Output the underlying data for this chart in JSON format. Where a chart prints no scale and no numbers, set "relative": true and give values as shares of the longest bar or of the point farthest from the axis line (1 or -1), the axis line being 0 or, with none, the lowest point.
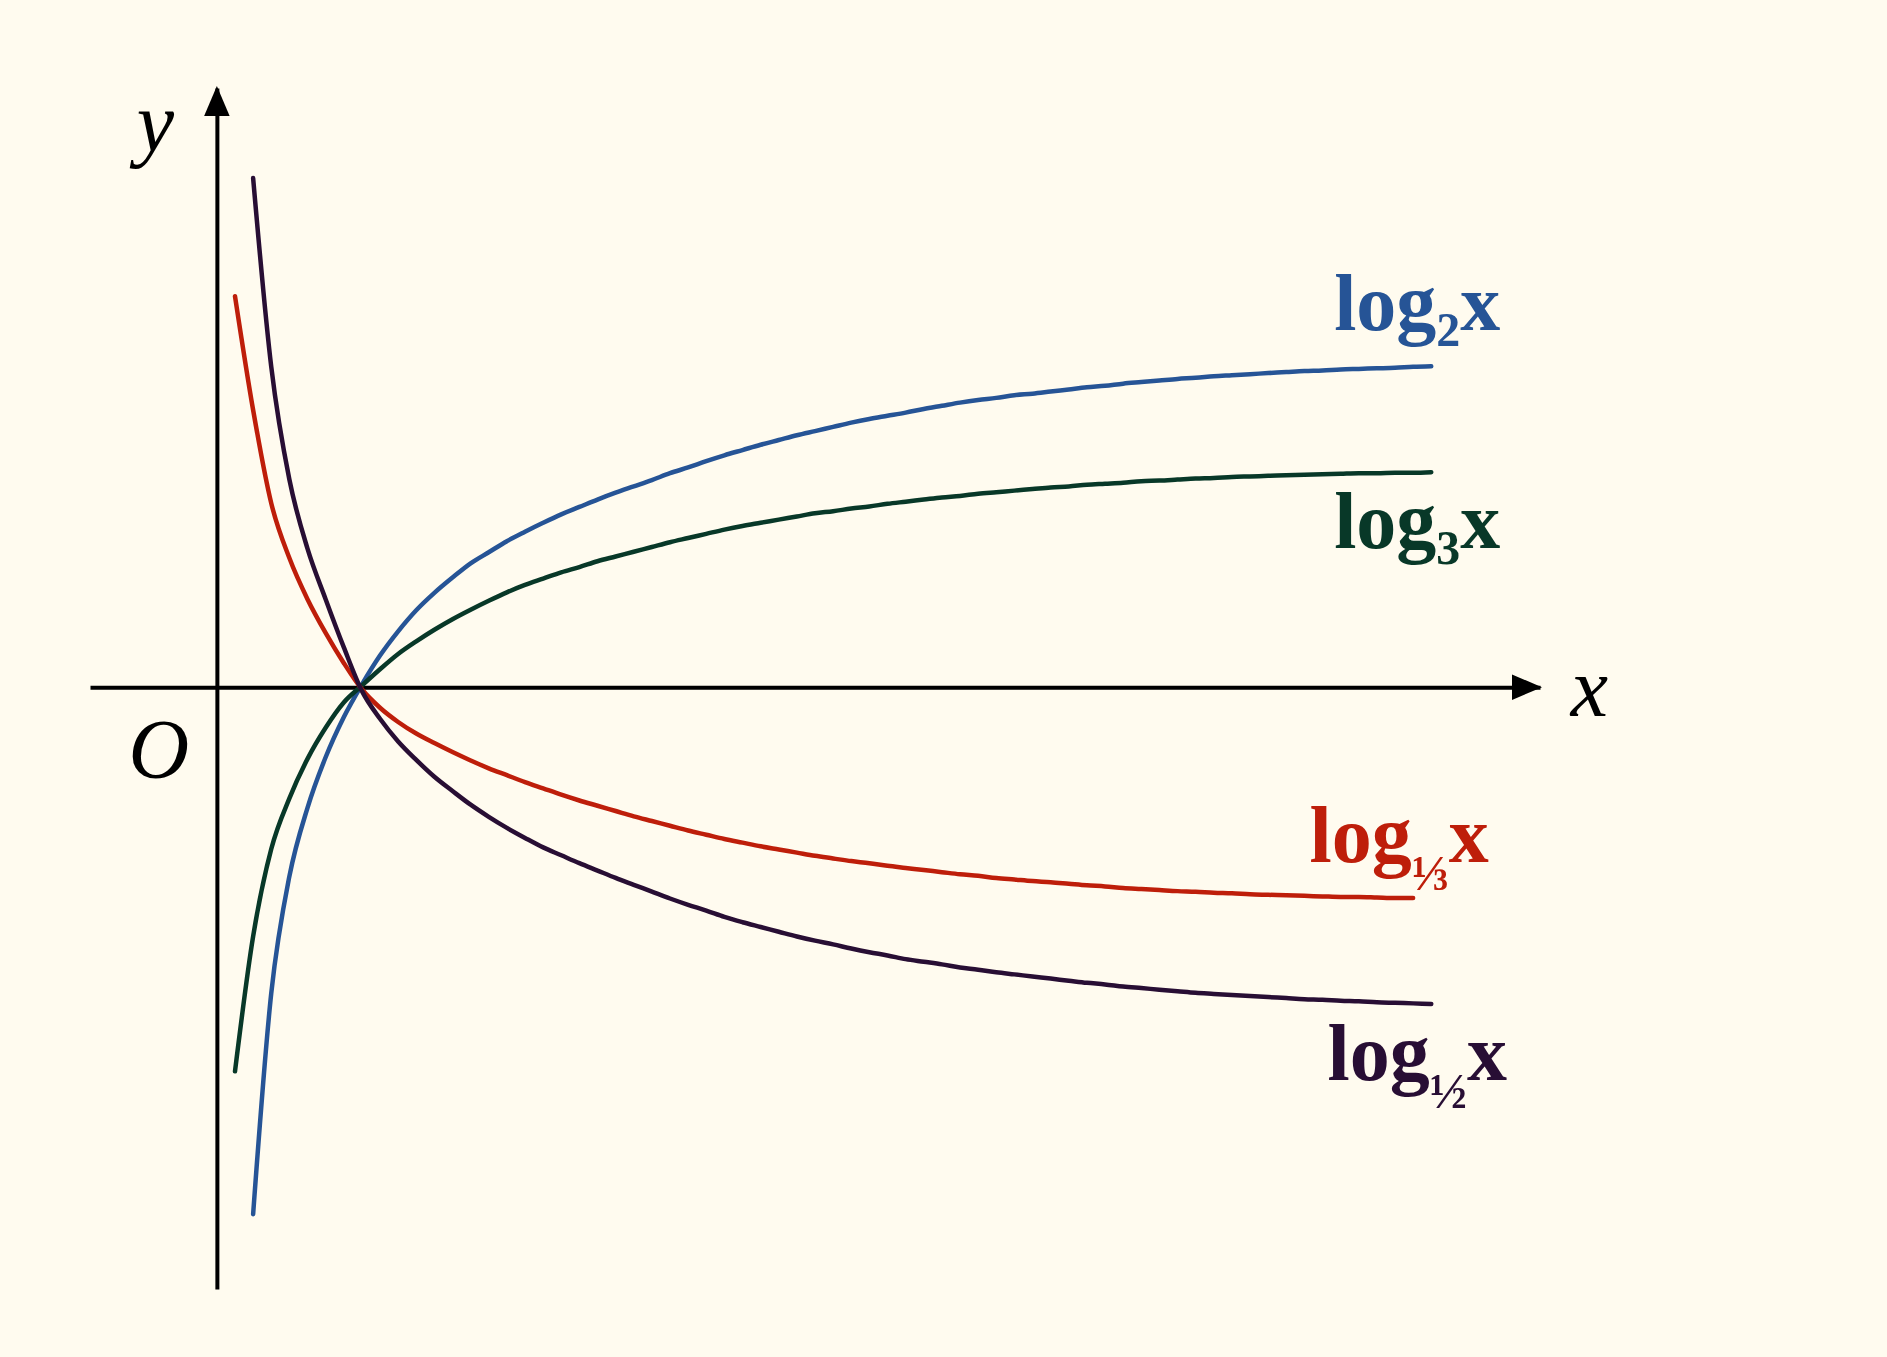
{
  "chart_data": {
    "type": "line",
    "xlabel": "x",
    "ylabel": "y",
    "annotations": [
      "O"
    ],
    "relative": true,
    "categories": [
      null,
      null,
      null,
      null,
      null,
      null,
      null,
      null,
      null,
      null,
      null,
      null,
      null,
      null,
      null,
      null,
      null,
      null,
      null,
      null,
      null,
      null,
      null,
      null,
      null,
      null,
      null,
      null,
      null,
      null,
      null,
      null,
      null,
      null,
      null,
      null,
      null,
      null,
      null,
      null,
      null,
      null,
      null,
      null,
      null,
      null,
      null,
      null,
      null,
      null,
      null,
      null,
      null,
      null,
      null,
      null,
      null,
      null,
      null,
      null,
      null,
      null,
      null,
      null,
      null,
      null,
      null,
      null,
      null,
      null,
      null,
      null,
      null,
      null,
      null,
      null,
      null,
      null,
      null,
      null,
      null
    ],
    "series": [
      {
        "name": "log₂x",
        "color": "#265496",
        "values": [
          null,
          null,
          null,
          null,
          null,
          null,
          null,
          null,
          null,
          -1.0,
          -0.581,
          -0.359,
          -0.229,
          -0.133,
          -0.057,
          0.005,
          0.06,
          0.106,
          0.146,
          0.179,
          0.208,
          0.235,
          0.256,
          0.277,
          0.295,
          0.312,
          0.328,
          0.342,
          0.356,
          0.369,
          0.381,
          0.393,
          0.406,
          0.417,
          0.429,
          0.44,
          0.45,
          0.46,
          0.469,
          0.478,
          0.486,
          0.494,
          0.502,
          0.509,
          0.515,
          0.521,
          0.528,
          0.534,
          0.54,
          0.545,
          0.549,
          0.554,
          0.557,
          0.561,
          0.565,
          0.569,
          0.572,
          0.576,
          0.579,
          0.582,
          0.585,
          0.587,
          0.59,
          0.592,
          0.594,
          0.596,
          0.598,
          0.6,
          0.601,
          0.603,
          0.604,
          0.605,
          0.606,
          0.608,
          0.609,
          null,
          null,
          null,
          null,
          null,
          null
        ]
      },
      {
        "name": "log₃x",
        "color": "#083828",
        "values": [
          null,
          null,
          null,
          null,
          null,
          null,
          null,
          null,
          -0.729,
          -0.473,
          -0.307,
          -0.211,
          -0.136,
          -0.077,
          -0.029,
          0.003,
          0.034,
          0.063,
          0.087,
          0.109,
          0.129,
          0.147,
          0.164,
          0.18,
          0.194,
          0.206,
          0.218,
          0.228,
          0.239,
          0.248,
          0.257,
          0.266,
          0.275,
          0.283,
          0.291,
          0.299,
          0.306,
          0.312,
          0.318,
          0.324,
          0.33,
          0.334,
          0.339,
          0.343,
          0.348,
          0.352,
          0.356,
          0.36,
          0.363,
          0.367,
          0.37,
          0.373,
          0.376,
          0.379,
          0.381,
          0.384,
          0.386,
          0.388,
          0.391,
          0.392,
          0.394,
          0.396,
          0.397,
          0.399,
          0.4,
          0.401,
          0.402,
          0.403,
          0.404,
          0.405,
          0.406,
          0.406,
          0.407,
          0.407,
          0.408,
          null,
          null,
          null,
          null,
          null,
          null
        ]
      },
      {
        "name": "log$_{⅓}$x",
        "color": "#be1e0a",
        "values": [
          null,
          null,
          null,
          null,
          null,
          null,
          null,
          null,
          0.742,
          0.526,
          0.349,
          0.245,
          0.167,
          0.103,
          0.046,
          -0.004,
          -0.039,
          -0.066,
          -0.088,
          -0.106,
          -0.123,
          -0.139,
          -0.154,
          -0.167,
          -0.18,
          -0.192,
          -0.204,
          -0.215,
          -0.225,
          -0.235,
          -0.245,
          -0.254,
          -0.263,
          -0.272,
          -0.28,
          -0.288,
          -0.295,
          -0.302,
          -0.308,
          -0.314,
          -0.32,
          -0.325,
          -0.33,
          -0.334,
          -0.339,
          -0.343,
          -0.347,
          -0.351,
          -0.355,
          -0.358,
          -0.362,
          -0.365,
          -0.368,
          -0.37,
          -0.373,
          -0.376,
          -0.378,
          -0.381,
          -0.383,
          -0.385,
          -0.387,
          -0.388,
          -0.39,
          -0.391,
          -0.393,
          -0.394,
          -0.395,
          -0.396,
          -0.397,
          -0.398,
          -0.398,
          -0.399,
          -0.4,
          -0.4,
          null,
          null,
          null,
          null,
          null,
          null,
          null
        ]
      },
      {
        "name": "log$_{½}$x",
        "color": "#280e34",
        "values": [
          null,
          null,
          null,
          null,
          null,
          null,
          null,
          null,
          null,
          0.966,
          0.608,
          0.394,
          0.263,
          0.167,
          0.076,
          -0.007,
          -0.06,
          -0.103,
          -0.138,
          -0.17,
          -0.197,
          -0.223,
          -0.246,
          -0.267,
          -0.286,
          -0.304,
          -0.319,
          -0.334,
          -0.348,
          -0.362,
          -0.375,
          -0.388,
          -0.401,
          -0.413,
          -0.424,
          -0.436,
          -0.446,
          -0.455,
          -0.464,
          -0.473,
          -0.481,
          -0.488,
          -0.496,
          -0.503,
          -0.509,
          -0.516,
          -0.521,
          -0.526,
          -0.532,
          -0.536,
          -0.541,
          -0.545,
          -0.549,
          -0.553,
          -0.557,
          -0.561,
          -0.564,
          -0.568,
          -0.571,
          -0.574,
          -0.577,
          -0.58,
          -0.582,
          -0.584,
          -0.586,
          -0.588,
          -0.59,
          -0.592,
          -0.593,
          -0.595,
          -0.596,
          -0.598,
          -0.599,
          -0.6,
          -0.601,
          null,
          null,
          null,
          null,
          null,
          null
        ]
      }
    ]
  }
}
